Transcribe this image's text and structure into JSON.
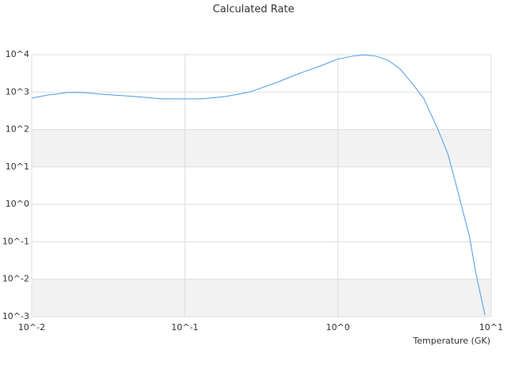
{
  "chart_data": {
    "type": "line",
    "title": "Calculated Rate",
    "x_label": "Temperature (GK)",
    "x": [
      0.01,
      0.0127,
      0.0171,
      0.0217,
      0.0292,
      0.047,
      0.071,
      0.129,
      0.185,
      0.265,
      0.4,
      0.57,
      0.77,
      0.98,
      1.24,
      1.48,
      1.77,
      2.12,
      2.54,
      3.04,
      3.64,
      4.53,
      5.22,
      6.03,
      7.24,
      7.93,
      9.11
    ],
    "series": [
      {
        "color": "#4a9ae8",
        "values": [
          690,
          830,
          970,
          970,
          870,
          760,
          660,
          660,
          760,
          1000,
          1820,
          3240,
          5000,
          7450,
          9100,
          9800,
          9100,
          7100,
          4170,
          1740,
          660,
          93,
          22,
          2.4,
          0.13,
          0.015,
          0.0011
        ]
      }
    ],
    "xlim": [
      0.01,
      10
    ],
    "ylim": [
      0.001,
      10000
    ],
    "log_x": true,
    "log_y": true,
    "xticks": [
      {
        "value": 0.01,
        "label": "10^-2"
      },
      {
        "value": 0.1,
        "label": "10^-1"
      },
      {
        "value": 1,
        "label": "10^0"
      },
      {
        "value": 10,
        "label": "10^1"
      }
    ],
    "yticks": [
      {
        "value": 0.001,
        "label": "10^-3"
      },
      {
        "value": 0.01,
        "label": "10^-2"
      },
      {
        "value": 0.1,
        "label": "10^-1"
      },
      {
        "value": 1,
        "label": "10^0"
      },
      {
        "value": 10,
        "label": "10^1"
      },
      {
        "value": 100,
        "label": "10^2"
      },
      {
        "value": 1000,
        "label": "10^3"
      },
      {
        "value": 10000,
        "label": "10^4"
      }
    ],
    "grid": true
  }
}
